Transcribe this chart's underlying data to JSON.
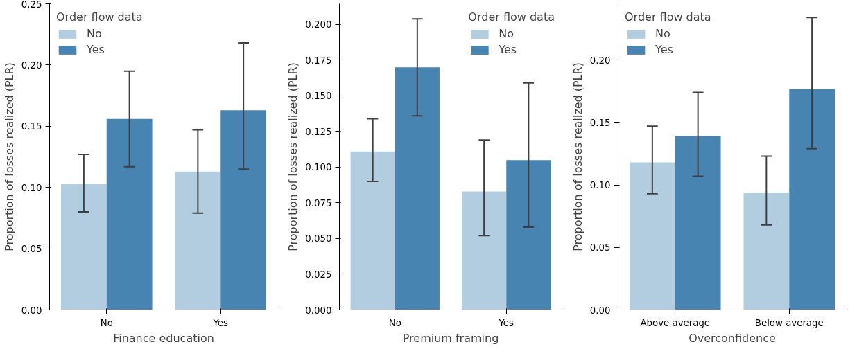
{
  "chart_data": [
    {
      "type": "bar",
      "xlabel": "Finance education",
      "ylabel": "Proportion of losses realized (PLR)",
      "legend_title": "Order flow data",
      "legend": "top left",
      "categories": [
        "No",
        "Yes"
      ],
      "ylim": [
        0,
        0.25
      ],
      "yticks": [
        {
          "value": 0,
          "label": "0.00"
        },
        {
          "value": 0.05,
          "label": "0.05"
        },
        {
          "value": 0.1,
          "label": "0.10"
        },
        {
          "value": 0.15,
          "label": "0.15"
        },
        {
          "value": 0.2,
          "label": "0.20"
        },
        {
          "value": 0.25,
          "label": "0.25"
        }
      ],
      "series": [
        {
          "name": "No",
          "color": "#b3cde0",
          "values": [
            0.103,
            0.113
          ],
          "errors": [
            [
              0.08,
              0.127
            ],
            [
              0.079,
              0.147
            ]
          ]
        },
        {
          "name": "Yes",
          "color": "#4884b1",
          "values": [
            0.156,
            0.163
          ],
          "errors": [
            [
              0.117,
              0.195
            ],
            [
              0.115,
              0.218
            ]
          ]
        }
      ]
    },
    {
      "type": "bar",
      "xlabel": "Premium framing",
      "ylabel": "Proportion of losses realized (PLR)",
      "legend_title": "Order flow data",
      "legend": "top right",
      "categories": [
        "No",
        "Yes"
      ],
      "ylim": [
        0,
        0.2145
      ],
      "yticks": [
        {
          "value": 0,
          "label": "0.000"
        },
        {
          "value": 0.025,
          "label": "0.025"
        },
        {
          "value": 0.05,
          "label": "0.050"
        },
        {
          "value": 0.075,
          "label": "0.075"
        },
        {
          "value": 0.1,
          "label": "0.100"
        },
        {
          "value": 0.125,
          "label": "0.125"
        },
        {
          "value": 0.15,
          "label": "0.150"
        },
        {
          "value": 0.175,
          "label": "0.175"
        },
        {
          "value": 0.2,
          "label": "0.200"
        }
      ],
      "series": [
        {
          "name": "No",
          "color": "#b3cde0",
          "values": [
            0.111,
            0.083
          ],
          "errors": [
            [
              0.09,
              0.134
            ],
            [
              0.052,
              0.119
            ]
          ]
        },
        {
          "name": "Yes",
          "color": "#4884b1",
          "values": [
            0.17,
            0.105
          ],
          "errors": [
            [
              0.136,
              0.204
            ],
            [
              0.058,
              0.159
            ]
          ]
        }
      ]
    },
    {
      "type": "bar",
      "xlabel": "Overconfidence",
      "ylabel": "Proportion of losses realized (PLR)",
      "legend_title": "Order flow data",
      "legend": "top left",
      "categories": [
        "Above average",
        "Below average"
      ],
      "ylim": [
        0,
        0.245
      ],
      "yticks": [
        {
          "value": 0,
          "label": "0.00"
        },
        {
          "value": 0.05,
          "label": "0.05"
        },
        {
          "value": 0.1,
          "label": "0.10"
        },
        {
          "value": 0.15,
          "label": "0.15"
        },
        {
          "value": 0.2,
          "label": "0.20"
        }
      ],
      "series": [
        {
          "name": "No",
          "color": "#b3cde0",
          "values": [
            0.118,
            0.094
          ],
          "errors": [
            [
              0.093,
              0.147
            ],
            [
              0.068,
              0.123
            ]
          ]
        },
        {
          "name": "Yes",
          "color": "#4884b1",
          "values": [
            0.139,
            0.177
          ],
          "errors": [
            [
              0.107,
              0.174
            ],
            [
              0.129,
              0.234
            ]
          ]
        }
      ]
    }
  ]
}
